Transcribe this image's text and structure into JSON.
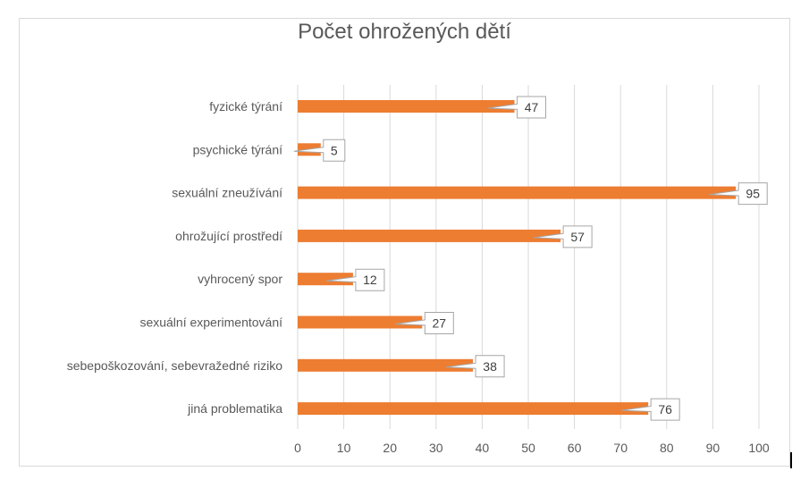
{
  "chart_data": {
    "type": "bar",
    "orientation": "horizontal",
    "title": "Počet ohrožených dětí",
    "categories": [
      "fyzické týrání",
      "psychické týrání",
      "sexuální zneužívání",
      "ohrožující prostředí",
      "vyhrocený spor",
      "sexuální experimentování",
      "sebepoškozování, sebevražedné riziko",
      "jiná problematika"
    ],
    "values": [
      47,
      5,
      95,
      57,
      12,
      27,
      38,
      76
    ],
    "xlim": [
      0,
      100
    ],
    "xticks": [
      0,
      10,
      20,
      30,
      40,
      50,
      60,
      70,
      80,
      90,
      100
    ],
    "grid": true,
    "legend": "none",
    "bar_color": "#ED7D31",
    "grid_color": "#d9d9d9",
    "label_border_color": "#a6a6a6"
  }
}
